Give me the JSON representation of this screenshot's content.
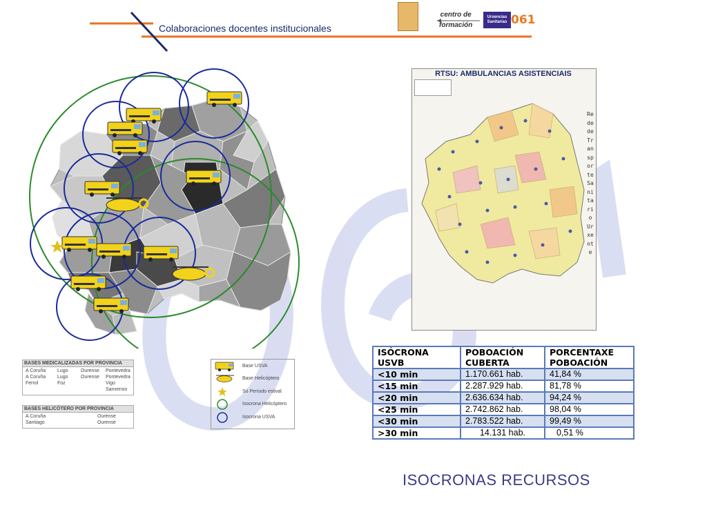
{
  "header": {
    "title": "Colaboraciones docentes institucionales",
    "centro_line1": "centro de",
    "centro_line2": "formación",
    "logo_line1": "Urxencias",
    "logo_line2": "Sanitarias",
    "logo_number": "061"
  },
  "rtsu_map": {
    "title": "RTSU: AMBULANCIAS ASISTENCIAIS",
    "side_text": "Rede de Transporte Sanitario Urxente"
  },
  "isochrone_table": {
    "headers": [
      "ISÓCRONA USVB",
      "POBOACIÓN CUBERTA",
      "PORCENTAXE POBOACIÓN"
    ],
    "rows": [
      {
        "time": "<10 min",
        "population": "1.170.661 hab.",
        "percent": "41,84 %"
      },
      {
        "time": "<15 min",
        "population": "2.287.929 hab.",
        "percent": "81,78 %"
      },
      {
        "time": "<20 min",
        "population": "2.636.634 hab.",
        "percent": "94,24 %"
      },
      {
        "time": "<25 min",
        "population": "2.742.862 hab.",
        "percent": "98,04 %"
      },
      {
        "time": "<30 min",
        "population": "2.783.522 hab.",
        "percent": "99,49 %"
      },
      {
        "time": ">30 min",
        "population": "14.131 hab.",
        "percent": "0,51 %"
      }
    ]
  },
  "bases_legend": {
    "medicalized_title": "BASES MEDICALIZADAS POR PROVINCIA",
    "medicalized_cols": [
      [
        "A Coruña",
        "A Coruña",
        "Ferrol"
      ],
      [
        "Lugo",
        "Lugo",
        "Foz"
      ],
      [
        "Ourense",
        "Ourense"
      ],
      [
        "Pontevedra",
        "Pontevedra",
        "Vigo",
        "Sanxenxo"
      ]
    ],
    "heli_title": "BASES HELICÓTERO POR PROVINCIA",
    "heli_cols": [
      [
        "A Coruña",
        "Santiago"
      ],
      [
        "Ourense",
        "Ourense"
      ]
    ]
  },
  "map_key": {
    "items": [
      "Base USVA",
      "Base Helicóptero",
      "Só Período estival",
      "Isocrona Helicóptero",
      "Isocrona USVA"
    ],
    "colors": {
      "usva_circle": "#1a2a9a",
      "heli_circle": "#2a8a2a",
      "star": "#e0c020"
    }
  },
  "footer": {
    "title": "ISOCRONAS RECURSOS"
  }
}
